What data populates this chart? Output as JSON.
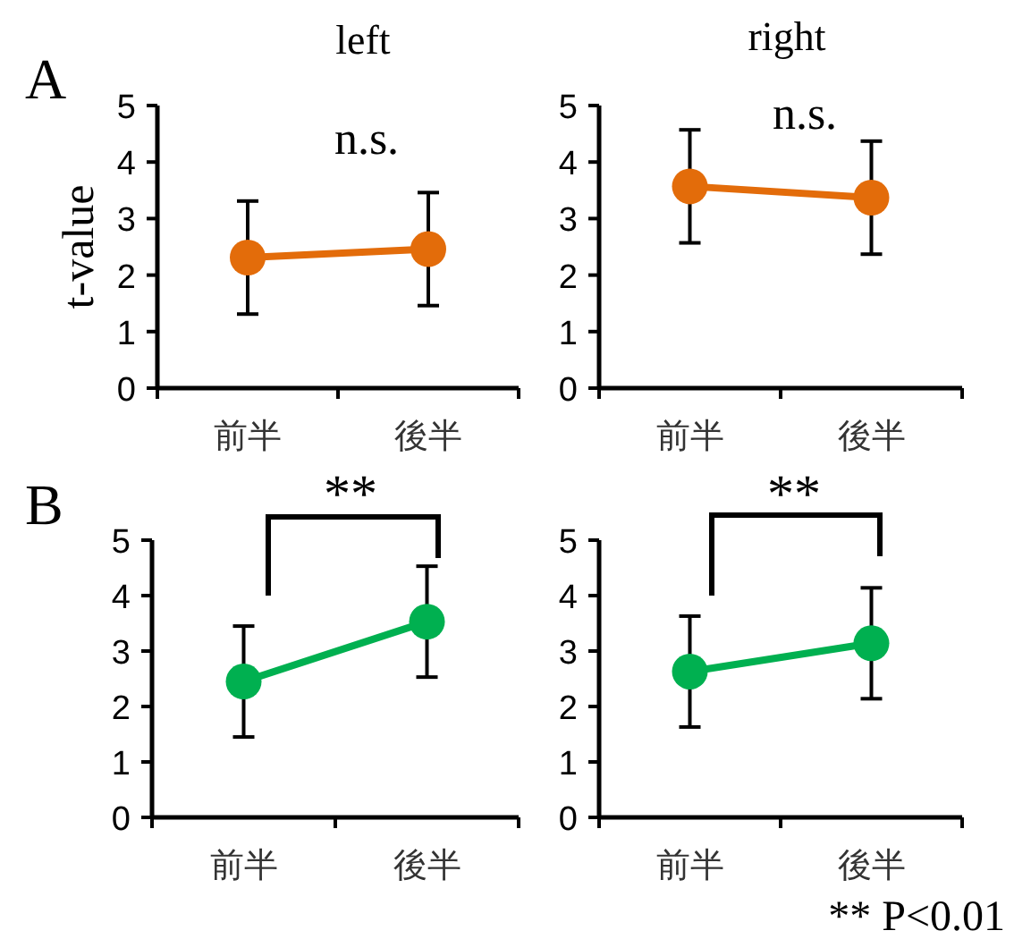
{
  "chart_data": [
    {
      "type": "line",
      "title": "left",
      "ylabel": "t-value",
      "categories": [
        "前半",
        "後半"
      ],
      "series": [
        {
          "color": "#e36c0a",
          "values": [
            2.31,
            2.46
          ],
          "errors": [
            1,
            1
          ]
        }
      ],
      "ylim": [
        0,
        5
      ],
      "yticks": [
        0,
        1,
        2,
        3,
        4,
        5
      ],
      "marker": "circle",
      "annotations": [
        "A",
        "n.s."
      ]
    },
    {
      "type": "line",
      "title": "right",
      "categories": [
        "前半",
        "後半"
      ],
      "series": [
        {
          "color": "#e36c0a",
          "values": [
            3.57,
            3.37
          ],
          "errors": [
            1,
            1
          ]
        }
      ],
      "ylim": [
        0,
        5
      ],
      "yticks": [
        0,
        1,
        2,
        3,
        4,
        5
      ],
      "marker": "circle",
      "annotations": [
        "n.s."
      ]
    },
    {
      "type": "line",
      "categories": [
        "前半",
        "後半"
      ],
      "series": [
        {
          "color": "#00b050",
          "values": [
            2.45,
            3.53
          ],
          "errors": [
            1,
            1
          ]
        }
      ],
      "ylim": [
        0,
        5
      ],
      "yticks": [
        0,
        1,
        2,
        3,
        4,
        5
      ],
      "marker": "circle",
      "annotations": [
        "B",
        "**"
      ]
    },
    {
      "type": "line",
      "categories": [
        "前半",
        "後半"
      ],
      "series": [
        {
          "color": "#00b050",
          "values": [
            2.63,
            3.14
          ],
          "errors": [
            1,
            1
          ]
        }
      ],
      "ylim": [
        0,
        5
      ],
      "yticks": [
        0,
        1,
        2,
        3,
        4,
        5
      ],
      "marker": "circle",
      "annotations": [
        "**",
        "** P<0.01"
      ]
    }
  ]
}
